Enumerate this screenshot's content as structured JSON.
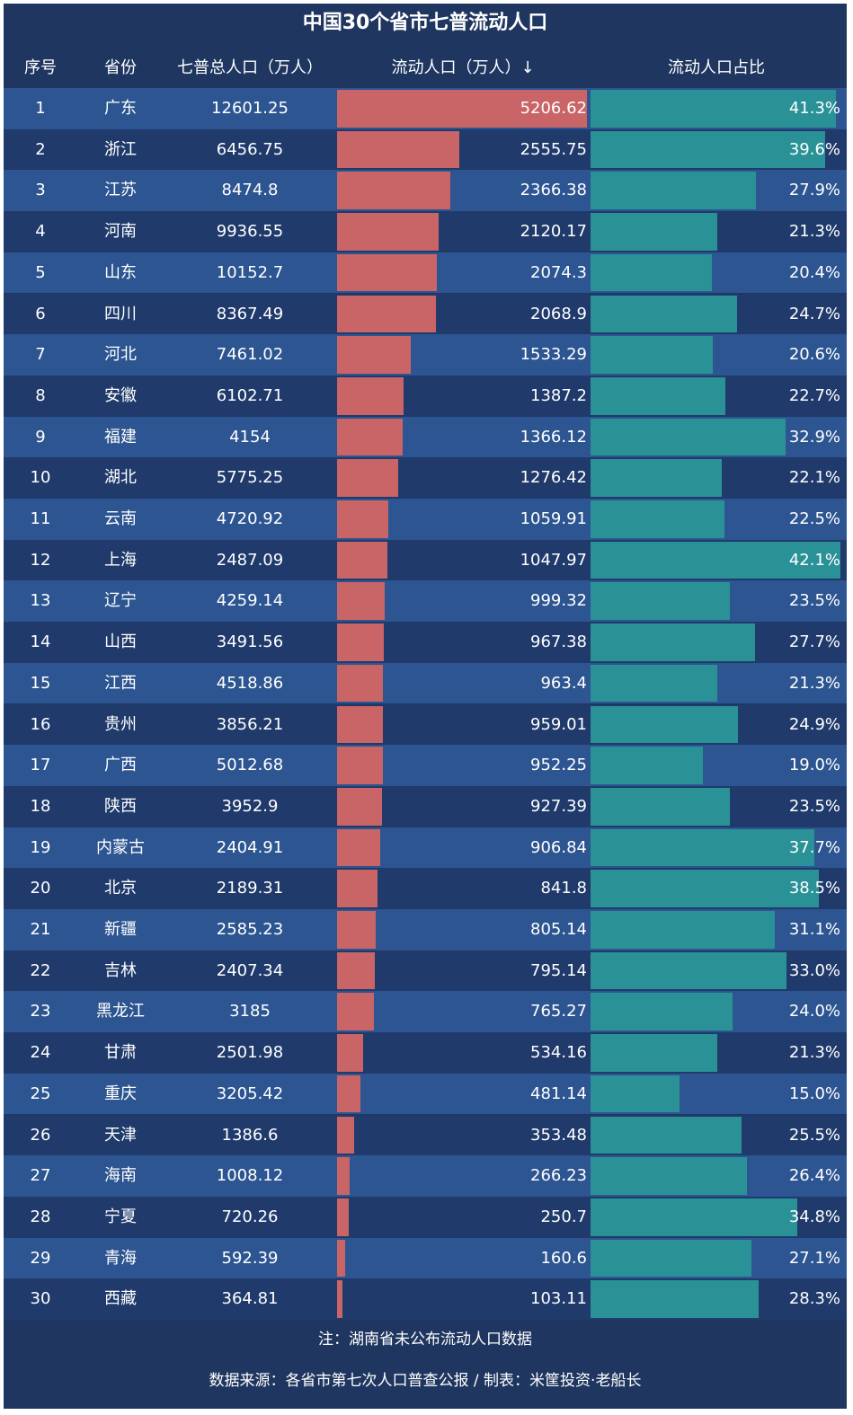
{
  "chart_data": {
    "type": "table",
    "title": "中国30个省市七普流动人口",
    "columns": [
      "序号",
      "省份",
      "七普总人口（万人）",
      "流动人口（万人）↓",
      "流动人口占比"
    ],
    "rows": [
      {
        "rank": "1",
        "province": "广东",
        "total": "12601.25",
        "floating": 5206.62,
        "floating_label": "5206.62",
        "share": 41.3,
        "share_label": "41.3%"
      },
      {
        "rank": "2",
        "province": "浙江",
        "total": "6456.75",
        "floating": 2555.75,
        "floating_label": "2555.75",
        "share": 39.6,
        "share_label": "39.6%"
      },
      {
        "rank": "3",
        "province": "江苏",
        "total": "8474.8",
        "floating": 2366.38,
        "floating_label": "2366.38",
        "share": 27.9,
        "share_label": "27.9%"
      },
      {
        "rank": "4",
        "province": "河南",
        "total": "9936.55",
        "floating": 2120.17,
        "floating_label": "2120.17",
        "share": 21.3,
        "share_label": "21.3%"
      },
      {
        "rank": "5",
        "province": "山东",
        "total": "10152.7",
        "floating": 2074.3,
        "floating_label": "2074.3",
        "share": 20.4,
        "share_label": "20.4%"
      },
      {
        "rank": "6",
        "province": "四川",
        "total": "8367.49",
        "floating": 2068.9,
        "floating_label": "2068.9",
        "share": 24.7,
        "share_label": "24.7%"
      },
      {
        "rank": "7",
        "province": "河北",
        "total": "7461.02",
        "floating": 1533.29,
        "floating_label": "1533.29",
        "share": 20.6,
        "share_label": "20.6%"
      },
      {
        "rank": "8",
        "province": "安徽",
        "total": "6102.71",
        "floating": 1387.2,
        "floating_label": "1387.2",
        "share": 22.7,
        "share_label": "22.7%"
      },
      {
        "rank": "9",
        "province": "福建",
        "total": "4154",
        "floating": 1366.12,
        "floating_label": "1366.12",
        "share": 32.9,
        "share_label": "32.9%"
      },
      {
        "rank": "10",
        "province": "湖北",
        "total": "5775.25",
        "floating": 1276.42,
        "floating_label": "1276.42",
        "share": 22.1,
        "share_label": "22.1%"
      },
      {
        "rank": "11",
        "province": "云南",
        "total": "4720.92",
        "floating": 1059.91,
        "floating_label": "1059.91",
        "share": 22.5,
        "share_label": "22.5%"
      },
      {
        "rank": "12",
        "province": "上海",
        "total": "2487.09",
        "floating": 1047.97,
        "floating_label": "1047.97",
        "share": 42.1,
        "share_label": "42.1%"
      },
      {
        "rank": "13",
        "province": "辽宁",
        "total": "4259.14",
        "floating": 999.32,
        "floating_label": "999.32",
        "share": 23.5,
        "share_label": "23.5%"
      },
      {
        "rank": "14",
        "province": "山西",
        "total": "3491.56",
        "floating": 967.38,
        "floating_label": "967.38",
        "share": 27.7,
        "share_label": "27.7%"
      },
      {
        "rank": "15",
        "province": "江西",
        "total": "4518.86",
        "floating": 963.4,
        "floating_label": "963.4",
        "share": 21.3,
        "share_label": "21.3%"
      },
      {
        "rank": "16",
        "province": "贵州",
        "total": "3856.21",
        "floating": 959.01,
        "floating_label": "959.01",
        "share": 24.9,
        "share_label": "24.9%"
      },
      {
        "rank": "17",
        "province": "广西",
        "total": "5012.68",
        "floating": 952.25,
        "floating_label": "952.25",
        "share": 19.0,
        "share_label": "19.0%"
      },
      {
        "rank": "18",
        "province": "陕西",
        "total": "3952.9",
        "floating": 927.39,
        "floating_label": "927.39",
        "share": 23.5,
        "share_label": "23.5%"
      },
      {
        "rank": "19",
        "province": "内蒙古",
        "total": "2404.91",
        "floating": 906.84,
        "floating_label": "906.84",
        "share": 37.7,
        "share_label": "37.7%"
      },
      {
        "rank": "20",
        "province": "北京",
        "total": "2189.31",
        "floating": 841.8,
        "floating_label": "841.8",
        "share": 38.5,
        "share_label": "38.5%"
      },
      {
        "rank": "21",
        "province": "新疆",
        "total": "2585.23",
        "floating": 805.14,
        "floating_label": "805.14",
        "share": 31.1,
        "share_label": "31.1%"
      },
      {
        "rank": "22",
        "province": "吉林",
        "total": "2407.34",
        "floating": 795.14,
        "floating_label": "795.14",
        "share": 33.0,
        "share_label": "33.0%"
      },
      {
        "rank": "23",
        "province": "黑龙江",
        "total": "3185",
        "floating": 765.27,
        "floating_label": "765.27",
        "share": 24.0,
        "share_label": "24.0%"
      },
      {
        "rank": "24",
        "province": "甘肃",
        "total": "2501.98",
        "floating": 534.16,
        "floating_label": "534.16",
        "share": 21.3,
        "share_label": "21.3%"
      },
      {
        "rank": "25",
        "province": "重庆",
        "total": "3205.42",
        "floating": 481.14,
        "floating_label": "481.14",
        "share": 15.0,
        "share_label": "15.0%"
      },
      {
        "rank": "26",
        "province": "天津",
        "total": "1386.6",
        "floating": 353.48,
        "floating_label": "353.48",
        "share": 25.5,
        "share_label": "25.5%"
      },
      {
        "rank": "27",
        "province": "海南",
        "total": "1008.12",
        "floating": 266.23,
        "floating_label": "266.23",
        "share": 26.4,
        "share_label": "26.4%"
      },
      {
        "rank": "28",
        "province": "宁夏",
        "total": "720.26",
        "floating": 250.7,
        "floating_label": "250.7",
        "share": 34.8,
        "share_label": "34.8%"
      },
      {
        "rank": "29",
        "province": "青海",
        "total": "592.39",
        "floating": 160.6,
        "floating_label": "160.6",
        "share": 27.1,
        "share_label": "27.1%"
      },
      {
        "rank": "30",
        "province": "西藏",
        "total": "364.81",
        "floating": 103.11,
        "floating_label": "103.11",
        "share": 28.3,
        "share_label": "28.3%"
      }
    ],
    "floating_max": 5206.62,
    "share_max": 42.1,
    "note": "注：湖南省未公布流动人口数据",
    "source": "数据来源：各省市第七次人口普查公报 / 制表：米筐投资·老船长"
  },
  "colors": {
    "panel_bg": "#1f3660",
    "row_odd": "#2c5591",
    "row_even": "#1f3a6b",
    "floating_bar": "#c96467",
    "share_bar": "#2a9296"
  }
}
